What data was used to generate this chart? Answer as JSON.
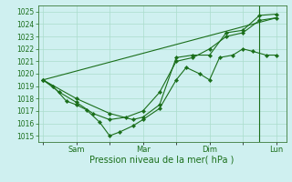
{
  "xlabel": "Pression niveau de la mer( hPa )",
  "ylim": [
    1014.5,
    1025.5
  ],
  "yticks": [
    1015,
    1016,
    1017,
    1018,
    1019,
    1020,
    1021,
    1022,
    1023,
    1024,
    1025
  ],
  "bg_color": "#cff0f0",
  "grid_color": "#aaddcc",
  "line_color": "#1a6e1a",
  "xtick_labels": [
    "",
    "Sam",
    "",
    "Mar",
    "",
    "Dim",
    "",
    "Lun"
  ],
  "xtick_positions": [
    0,
    1,
    2,
    3,
    4,
    5,
    6,
    7
  ],
  "xlim": [
    -0.15,
    7.3
  ],
  "line1_x": [
    0.0,
    0.3,
    0.7,
    1.0,
    1.3,
    1.7,
    2.0,
    2.3,
    2.7,
    3.0,
    3.5,
    4.0,
    4.3,
    4.7,
    5.0,
    5.3,
    5.7,
    6.0,
    6.3,
    6.7,
    7.0
  ],
  "line1_y": [
    1019.5,
    1019.0,
    1017.8,
    1017.5,
    1017.1,
    1016.1,
    1015.0,
    1015.3,
    1015.8,
    1016.3,
    1017.2,
    1019.5,
    1020.5,
    1020.0,
    1019.5,
    1021.3,
    1021.5,
    1022.0,
    1021.8,
    1021.5,
    1021.5
  ],
  "line2_x": [
    0.0,
    0.5,
    1.0,
    1.5,
    2.0,
    2.5,
    3.0,
    3.5,
    4.0,
    4.5,
    5.0,
    5.5,
    6.0,
    6.5,
    7.0
  ],
  "line2_y": [
    1019.5,
    1018.5,
    1017.7,
    1016.8,
    1016.3,
    1016.5,
    1017.0,
    1018.5,
    1021.0,
    1021.3,
    1022.0,
    1023.0,
    1023.3,
    1024.3,
    1024.5
  ],
  "line3_x": [
    0.0,
    1.0,
    2.0,
    2.7,
    3.0,
    3.5,
    4.0,
    4.5,
    5.0,
    5.5,
    6.0,
    6.5,
    7.0
  ],
  "line3_y": [
    1019.5,
    1018.0,
    1016.8,
    1016.3,
    1016.5,
    1017.5,
    1021.3,
    1021.5,
    1021.5,
    1023.3,
    1023.5,
    1024.7,
    1024.8
  ],
  "line4_x": [
    0.0,
    7.0
  ],
  "line4_y": [
    1019.5,
    1024.5
  ],
  "vline_x": 6.5,
  "font_color": "#1a6e1a",
  "tick_fontsize": 5.5,
  "xlabel_fontsize": 7.0,
  "lw": 0.8,
  "ms": 2.2
}
